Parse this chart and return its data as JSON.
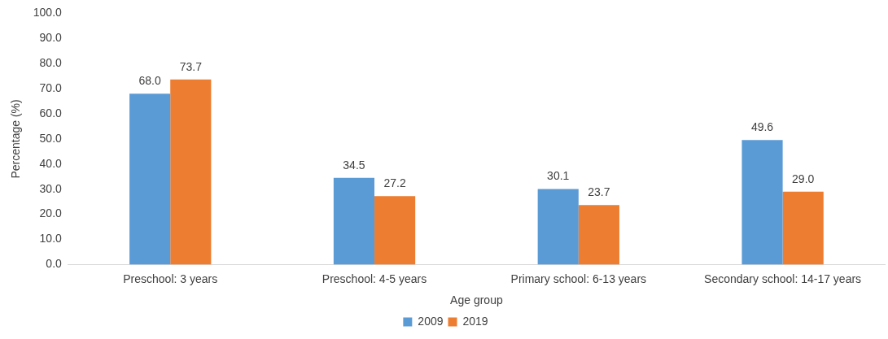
{
  "chart_data": {
    "type": "bar",
    "xlabel": "Age group",
    "ylabel": "Percentage (%)",
    "categories": [
      "Preschool: 3 years",
      "Preschool: 4-5 years",
      "Primary school: 6-13 years",
      "Secondary school: 14-17 years"
    ],
    "series": [
      {
        "name": "2009",
        "color": "#5b9bd5",
        "values": [
          68.0,
          34.5,
          30.1,
          49.6
        ],
        "value_labels": [
          "68.0",
          "34.5",
          "30.1",
          "49.6"
        ]
      },
      {
        "name": "2019",
        "color": "#ed7d31",
        "values": [
          73.7,
          27.2,
          23.7,
          29.0
        ],
        "value_labels": [
          "73.7",
          "27.2",
          "23.7",
          "29.0"
        ]
      }
    ],
    "ylim": [
      0,
      100
    ],
    "yticks": [
      {
        "value": 0,
        "label": "0.0"
      },
      {
        "value": 10,
        "label": "10.0"
      },
      {
        "value": 20,
        "label": "20.0"
      },
      {
        "value": 30,
        "label": "30.0"
      },
      {
        "value": 40,
        "label": "40.0"
      },
      {
        "value": 50,
        "label": "50.0"
      },
      {
        "value": 60,
        "label": "60.0"
      },
      {
        "value": 70,
        "label": "70.0"
      },
      {
        "value": 80,
        "label": "80.0"
      },
      {
        "value": 90,
        "label": "90.0"
      },
      {
        "value": 100,
        "label": "100.0"
      }
    ],
    "grid": false,
    "legend": "bottom"
  }
}
